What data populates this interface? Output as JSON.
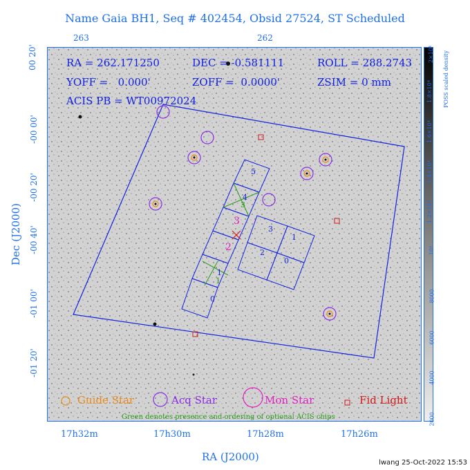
{
  "title": "Name Gaia BH1, Seq # 402454, Obsid 27524, ST Scheduled",
  "top_ticks": [
    "263",
    "262"
  ],
  "dec_ticks": [
    "00 20'",
    "-00 00'",
    "-00 20'",
    "-00 40'",
    "-01 00'",
    "-01 20'"
  ],
  "ra_ticks": [
    "17h32m",
    "17h30m",
    "17h28m",
    "17h26m"
  ],
  "x_axis_title": "RA (J2000)",
  "y_axis_title": "Dec (J2000)",
  "info": {
    "ra": "RA = 262.171250",
    "dec": "DEC = -0.581111",
    "roll": "ROLL = 288.2743",
    "yoff": "YOFF =   0.000'",
    "zoff": "ZOFF =  0.0000'",
    "zsim": "ZSIM = 0 mm",
    "acis_pb": "ACIS PB = WT00972024"
  },
  "chips_i": [
    "5",
    "4",
    "3",
    "2",
    "1",
    "0"
  ],
  "chips_s": [
    "3",
    "1",
    "2",
    "0"
  ],
  "optional_i": [
    "4",
    "3"
  ],
  "optional_s": [
    "1"
  ],
  "fov_labels": [
    "3",
    "2"
  ],
  "legend": {
    "guide": "Guide Star",
    "acq": "Acq Star",
    "mon": "Mon Star",
    "fid": "Fid Light",
    "note": "Green denotes presence and ordering of optional ACIS chips"
  },
  "colorbar": {
    "title": "POSS scaled density",
    "ticks": [
      "2000",
      "4000",
      "6000",
      "8000",
      "10⁴",
      "1.2×10⁴",
      "1.4×10⁴",
      "1.6×10⁴",
      "1.8×10⁴",
      "2×10⁴"
    ]
  },
  "signature": "lwang 25-Oct-2022 15:53",
  "colors": {
    "axis_text": "#1e6ff0",
    "info_text": "#1020e0",
    "guide": "#e88a1a",
    "acq": "#8a2be2",
    "mon": "#e020c0",
    "fid": "#d01818",
    "optional": "#2a9a1a",
    "outline": "#1020e0"
  }
}
